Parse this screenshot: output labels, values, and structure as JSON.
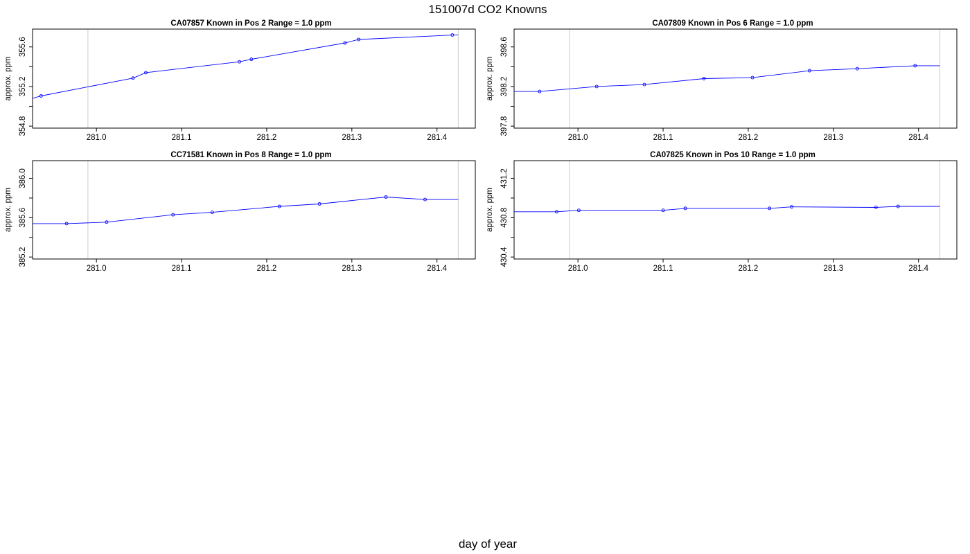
{
  "figure": {
    "title": "151007d   CO2 Knowns",
    "xlabel": "day of year"
  },
  "chart_data": [
    {
      "type": "line",
      "title_parts": [
        "CA07857",
        "Known in Pos 2",
        "Range = 1.0 ppm"
      ],
      "ylabel": "approx. ppm",
      "xlim": [
        280.925,
        281.445
      ],
      "ylim": [
        354.78,
        355.78
      ],
      "xticks": [
        "281.0",
        "281.1",
        "281.2",
        "281.3",
        "281.4"
      ],
      "yticks": [
        "354.8",
        "355.2",
        "355.6"
      ],
      "vlines": [
        280.99,
        281.425
      ],
      "grid": false,
      "series": [
        {
          "color": "#0000ff",
          "x": [
            280.925,
            280.935,
            281.043,
            281.058,
            281.168,
            281.182,
            281.292,
            281.308,
            281.418,
            281.425
          ],
          "y": [
            355.08,
            355.105,
            355.285,
            355.34,
            355.45,
            355.475,
            355.64,
            355.675,
            355.72,
            355.72
          ]
        }
      ]
    },
    {
      "type": "line",
      "title_parts": [
        "CA07809",
        "Known in Pos 6",
        "Range = 1.0 ppm"
      ],
      "ylabel": "approx. ppm",
      "xlim": [
        280.925,
        281.445
      ],
      "ylim": [
        397.78,
        398.78
      ],
      "xticks": [
        "281.0",
        "281.1",
        "281.2",
        "281.3",
        "281.4"
      ],
      "yticks": [
        "397.8",
        "398.2",
        "398.6"
      ],
      "vlines": [
        280.99,
        281.425
      ],
      "grid": false,
      "series": [
        {
          "color": "#0000ff",
          "x": [
            280.925,
            280.955,
            281.022,
            281.078,
            281.148,
            281.205,
            281.272,
            281.328,
            281.396,
            281.425
          ],
          "y": [
            398.15,
            398.15,
            398.2,
            398.22,
            398.28,
            398.29,
            398.36,
            398.38,
            398.41,
            398.41
          ]
        }
      ]
    },
    {
      "type": "line",
      "title_parts": [
        "CC71581",
        "Known in Pos 8",
        "Range = 1.0 ppm"
      ],
      "ylabel": "approx. ppm",
      "xlim": [
        280.925,
        281.445
      ],
      "ylim": [
        385.18,
        386.18
      ],
      "xticks": [
        "281.0",
        "281.1",
        "281.2",
        "281.3",
        "281.4"
      ],
      "yticks": [
        "385.2",
        "385.6",
        "386.0"
      ],
      "vlines": [
        280.99,
        281.425
      ],
      "grid": false,
      "series": [
        {
          "color": "#0000ff",
          "x": [
            280.925,
            280.965,
            281.012,
            281.09,
            281.136,
            281.215,
            281.262,
            281.34,
            281.386,
            281.425
          ],
          "y": [
            385.54,
            385.54,
            385.555,
            385.63,
            385.655,
            385.715,
            385.74,
            385.81,
            385.785,
            385.785
          ]
        }
      ]
    },
    {
      "type": "line",
      "title_parts": [
        "CA07825",
        "Known in Pos 10",
        "Range = 1.0 ppm"
      ],
      "ylabel": "approx. ppm",
      "xlim": [
        280.925,
        281.445
      ],
      "ylim": [
        430.38,
        431.38
      ],
      "xticks": [
        "281.0",
        "281.1",
        "281.2",
        "281.3",
        "281.4"
      ],
      "yticks": [
        "430.4",
        "430.8",
        "431.2"
      ],
      "vlines": [
        280.99,
        281.425
      ],
      "grid": false,
      "series": [
        {
          "color": "#0000ff",
          "x": [
            280.925,
            280.975,
            281.001,
            281.1,
            281.126,
            281.225,
            281.251,
            281.35,
            281.376,
            281.425
          ],
          "y": [
            430.86,
            430.86,
            430.875,
            430.875,
            430.895,
            430.895,
            430.91,
            430.905,
            430.915,
            430.915
          ]
        }
      ]
    }
  ]
}
